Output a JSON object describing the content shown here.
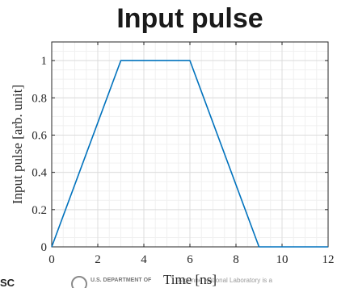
{
  "chart_data": {
    "type": "line",
    "title": "Input pulse",
    "xlabel": "Time [ns]",
    "ylabel": "Input pulse [arb. unit]",
    "xlim": [
      0,
      12
    ],
    "ylim": [
      0,
      1.1
    ],
    "xticks": [
      0,
      2,
      4,
      6,
      8,
      10,
      12
    ],
    "yticks": [
      0,
      0.2,
      0.4,
      0.6,
      0.8,
      1
    ],
    "xtick_labels": [
      "0",
      "2",
      "4",
      "6",
      "8",
      "10",
      "12"
    ],
    "ytick_labels": [
      "0",
      "0.2",
      "0.4",
      "0.6",
      "0.8",
      "1"
    ],
    "grid": true,
    "minor_grid": true,
    "series": [
      {
        "x": [
          0,
          3,
          6,
          9,
          12
        ],
        "y": [
          0,
          1,
          1,
          0,
          0
        ],
        "color": "#0072bd"
      }
    ]
  },
  "footer": {
    "left_text": "SC",
    "department_text": "U.S. DEPARTMENT OF",
    "lab_text": "Argonne National Laboratory is a"
  }
}
